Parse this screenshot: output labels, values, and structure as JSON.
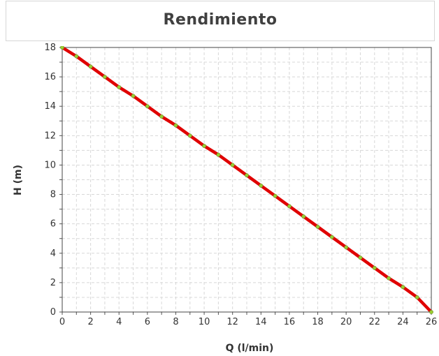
{
  "title": "Rendimiento",
  "chart_data": {
    "type": "line",
    "title": "Rendimiento",
    "xlabel": "Q (l/min)",
    "ylabel": "H (m)",
    "xlim": [
      0,
      26
    ],
    "ylim": [
      0,
      18
    ],
    "xticks": [
      0,
      2,
      4,
      6,
      8,
      10,
      12,
      14,
      16,
      18,
      20,
      22,
      24,
      26
    ],
    "yticks": [
      0,
      2,
      4,
      6,
      8,
      10,
      12,
      14,
      16,
      18
    ],
    "grid": true,
    "line_color": "#e00000",
    "marker_color": "#9acd32",
    "x": [
      0,
      1,
      2,
      3,
      4,
      5,
      6,
      7,
      8,
      9,
      10,
      11,
      12,
      13,
      14,
      15,
      16,
      17,
      18,
      19,
      20,
      21,
      22,
      23,
      24,
      25,
      26
    ],
    "y": [
      18.0,
      17.4,
      16.7,
      16.0,
      15.3,
      14.7,
      14.0,
      13.3,
      12.7,
      12.0,
      11.3,
      10.7,
      10.0,
      9.3,
      8.6,
      7.9,
      7.2,
      6.5,
      5.8,
      5.1,
      4.4,
      3.7,
      3.0,
      2.3,
      1.7,
      1.0,
      0.0
    ]
  }
}
